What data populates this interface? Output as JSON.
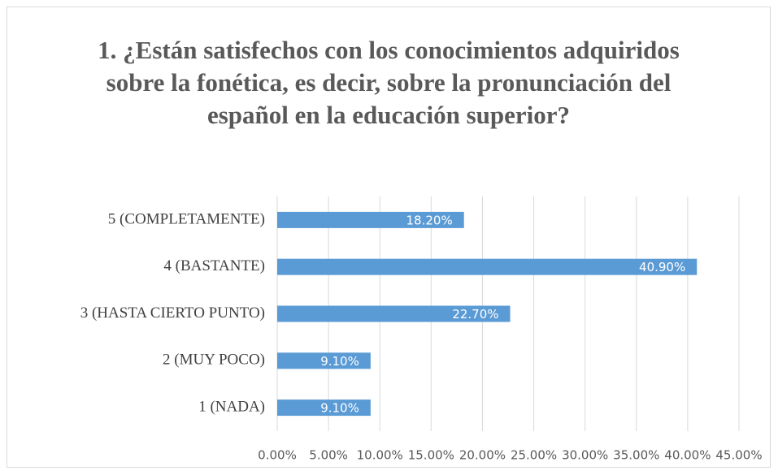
{
  "chart_data": {
    "type": "hbar",
    "title": "1. ¿Están satisfechos con los conocimientos adquiridos sobre la fonética, es decir, sobre la pronunciación del español en la educación superior?",
    "categories": [
      "5 (COMPLETAMENTE)",
      "4 (BASTANTE)",
      "3 (HASTA CIERTO PUNTO)",
      "2 (MUY POCO)",
      "1 (NADA)"
    ],
    "values": [
      18.2,
      40.9,
      22.7,
      9.1,
      9.1
    ],
    "value_labels": [
      "18.20%",
      "40.90%",
      "22.70%",
      "9.10%",
      "9.10%"
    ],
    "color": "#5b9bd5",
    "xlim": [
      0,
      45
    ],
    "xticks": [
      {
        "value": 0,
        "label": "0.00%"
      },
      {
        "value": 5,
        "label": "5.00%"
      },
      {
        "value": 10,
        "label": "10.00%"
      },
      {
        "value": 15,
        "label": "15.00%"
      },
      {
        "value": 20,
        "label": "20.00%"
      },
      {
        "value": 25,
        "label": "25.00%"
      },
      {
        "value": 30,
        "label": "30.00%"
      },
      {
        "value": 35,
        "label": "35.00%"
      },
      {
        "value": 40,
        "label": "40.00%"
      },
      {
        "value": 45,
        "label": "45.00%"
      }
    ],
    "grid": true
  }
}
